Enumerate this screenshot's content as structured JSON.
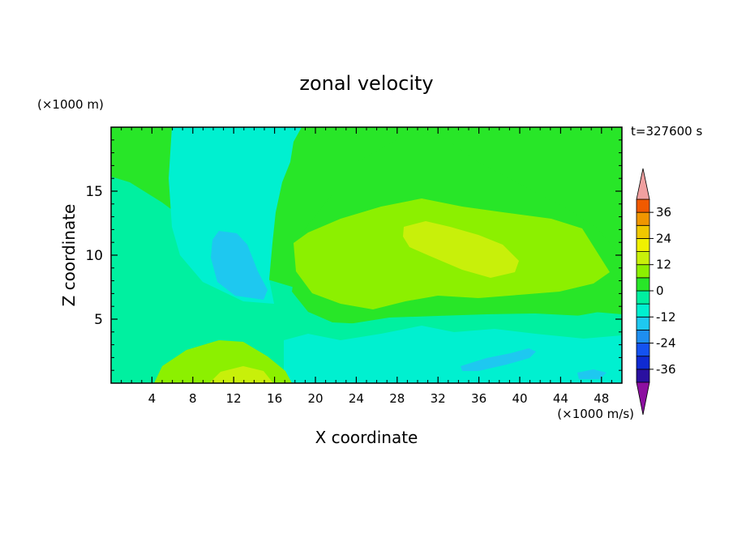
{
  "chart_data": {
    "type": "heatmap",
    "title": "zonal velocity",
    "xlabel": "X coordinate",
    "ylabel": "Z coordinate",
    "x_unit": "(×1000 m/s)",
    "y_unit": "(×1000 m)",
    "time_label": "t=327600 s",
    "xlim": [
      0,
      50
    ],
    "ylim": [
      0,
      20
    ],
    "x_ticks": [
      4,
      8,
      12,
      16,
      20,
      24,
      28,
      32,
      36,
      40,
      44,
      48
    ],
    "y_ticks": [
      5,
      10,
      15
    ],
    "colorbar": {
      "levels": [
        -42,
        -36,
        -30,
        -24,
        -18,
        -12,
        -6,
        0,
        6,
        12,
        18,
        24,
        30,
        36,
        42
      ],
      "tick_labels": [
        -36,
        -24,
        -12,
        0,
        12,
        24,
        36
      ],
      "colors": [
        "#5a0fa6",
        "#2a10a0",
        "#0f2ad2",
        "#1452f0",
        "#1e8ef0",
        "#1ec8f0",
        "#00f0d0",
        "#00f0a0",
        "#28e628",
        "#8cf000",
        "#c8f00a",
        "#f0f000",
        "#f0c800",
        "#f09600",
        "#f05a00",
        "#ec1e1e"
      ],
      "under_color": "#8c0fa0",
      "over_color": "#f0a0a0",
      "extend": "both"
    },
    "field_values": {
      "background": 3,
      "regions": [
        {
          "name": "left slab",
          "value": -3
        },
        {
          "name": "upper-left column",
          "value": -8
        },
        {
          "name": "column core",
          "value": -13
        },
        {
          "name": "upper mid plume",
          "value": 4
        },
        {
          "name": "upper jet",
          "value": 9
        },
        {
          "name": "jet core",
          "value": 14
        },
        {
          "name": "lower band",
          "value": -3
        },
        {
          "name": "bottom band",
          "value": -8
        },
        {
          "name": "bottom cores",
          "value": -17
        },
        {
          "name": "surface warm bump",
          "value": 9
        },
        {
          "name": "surface warm core",
          "value": 15
        }
      ]
    }
  }
}
